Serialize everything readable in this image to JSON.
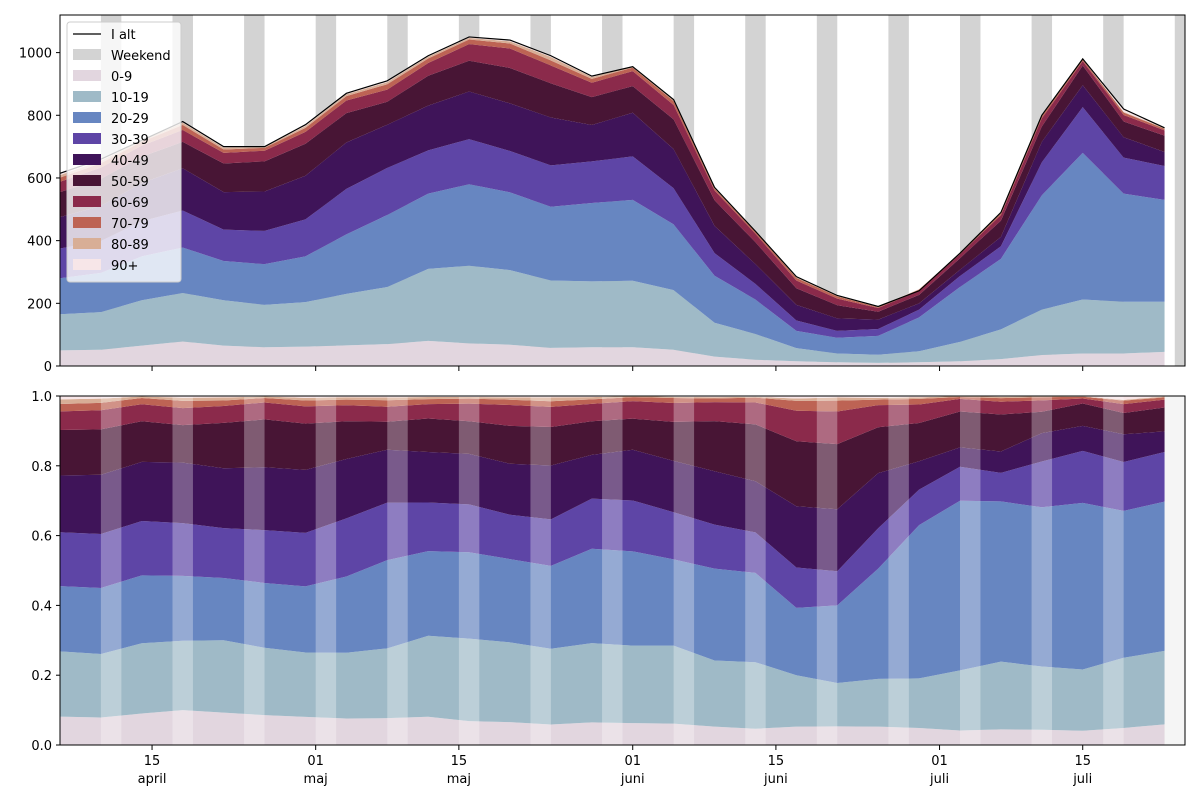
{
  "chart_data": [
    {
      "type": "area",
      "stacked": true,
      "x_axis": {
        "start_date": "2021-04-06",
        "end_date": "2021-07-25",
        "major_ticks": [
          {
            "date": "2021-04-15",
            "day": "15",
            "month": "april"
          },
          {
            "date": "2021-05-01",
            "day": "01",
            "month": "maj"
          },
          {
            "date": "2021-05-15",
            "day": "15",
            "month": "maj"
          },
          {
            "date": "2021-06-01",
            "day": "01",
            "month": "juni"
          },
          {
            "date": "2021-06-15",
            "day": "15",
            "month": "juni"
          },
          {
            "date": "2021-07-01",
            "day": "01",
            "month": "juli"
          },
          {
            "date": "2021-07-15",
            "day": "15",
            "month": "juli"
          }
        ]
      },
      "ylim": [
        0,
        1120
      ],
      "yticks": [
        0,
        200,
        400,
        600,
        800,
        1000
      ],
      "legend_position": "top-left",
      "weekend_color": "#d3d3d3",
      "total_color": "#000000",
      "legend": {
        "total": "I alt",
        "weekend": "Weekend"
      },
      "weekends": [
        {
          "start": "2021-04-10",
          "end": "2021-04-11"
        },
        {
          "start": "2021-04-17",
          "end": "2021-04-18"
        },
        {
          "start": "2021-04-24",
          "end": "2021-04-25"
        },
        {
          "start": "2021-05-01",
          "end": "2021-05-02"
        },
        {
          "start": "2021-05-08",
          "end": "2021-05-09"
        },
        {
          "start": "2021-05-15",
          "end": "2021-05-16"
        },
        {
          "start": "2021-05-22",
          "end": "2021-05-23"
        },
        {
          "start": "2021-05-29",
          "end": "2021-05-30"
        },
        {
          "start": "2021-06-05",
          "end": "2021-06-06"
        },
        {
          "start": "2021-06-12",
          "end": "2021-06-13"
        },
        {
          "start": "2021-06-19",
          "end": "2021-06-20"
        },
        {
          "start": "2021-06-26",
          "end": "2021-06-27"
        },
        {
          "start": "2021-07-03",
          "end": "2021-07-04"
        },
        {
          "start": "2021-07-10",
          "end": "2021-07-11"
        },
        {
          "start": "2021-07-17",
          "end": "2021-07-18"
        },
        {
          "start": "2021-07-24",
          "end": "2021-07-25"
        }
      ],
      "x": [
        "2021-04-06",
        "2021-04-10",
        "2021-04-14",
        "2021-04-18",
        "2021-04-22",
        "2021-04-26",
        "2021-04-30",
        "2021-05-04",
        "2021-05-08",
        "2021-05-12",
        "2021-05-16",
        "2021-05-20",
        "2021-05-24",
        "2021-05-28",
        "2021-06-01",
        "2021-06-05",
        "2021-06-09",
        "2021-06-13",
        "2021-06-17",
        "2021-06-21",
        "2021-06-25",
        "2021-06-29",
        "2021-07-03",
        "2021-07-07",
        "2021-07-11",
        "2021-07-15",
        "2021-07-19",
        "2021-07-23"
      ],
      "total": [
        615,
        660,
        720,
        780,
        700,
        700,
        770,
        870,
        910,
        990,
        1050,
        1040,
        990,
        925,
        955,
        850,
        570,
        430,
        285,
        225,
        190,
        240,
        360,
        490,
        800,
        980,
        820,
        760
      ],
      "series": [
        {
          "name": "0-9",
          "color": "#e2d6df",
          "values": [
            50,
            52,
            65,
            78,
            65,
            60,
            62,
            66,
            70,
            80,
            72,
            68,
            58,
            60,
            60,
            52,
            30,
            20,
            15,
            12,
            10,
            12,
            15,
            22,
            35,
            40,
            40,
            45
          ]
        },
        {
          "name": "10-19",
          "color": "#9fbac7",
          "values": [
            115,
            120,
            145,
            155,
            145,
            135,
            142,
            164,
            182,
            230,
            248,
            238,
            215,
            210,
            212,
            190,
            108,
            82,
            42,
            28,
            26,
            35,
            62,
            95,
            145,
            172,
            165,
            160
          ]
        },
        {
          "name": "20-29",
          "color": "#6786c1",
          "values": [
            115,
            125,
            140,
            145,
            125,
            130,
            146,
            190,
            230,
            240,
            260,
            248,
            235,
            250,
            258,
            210,
            150,
            110,
            55,
            50,
            60,
            108,
            175,
            225,
            365,
            468,
            345,
            325
          ]
        },
        {
          "name": "30-39",
          "color": "#5e45a6",
          "values": [
            95,
            102,
            112,
            118,
            100,
            106,
            118,
            145,
            150,
            138,
            144,
            132,
            132,
            133,
            139,
            115,
            72,
            50,
            33,
            22,
            22,
            25,
            35,
            40,
            105,
            146,
            115,
            108
          ]
        },
        {
          "name": "40-49",
          "color": "#3f1459",
          "values": [
            100,
            112,
            122,
            135,
            120,
            126,
            139,
            148,
            138,
            143,
            152,
            152,
            153,
            116,
            139,
            125,
            87,
            63,
            50,
            40,
            30,
            20,
            20,
            30,
            65,
            70,
            65,
            45
          ]
        },
        {
          "name": "50-59",
          "color": "#481535",
          "values": [
            80,
            86,
            84,
            84,
            91,
            96,
            102,
            94,
            73,
            95,
            98,
            113,
            109,
            89,
            85,
            95,
            82,
            70,
            53,
            42,
            25,
            27,
            37,
            52,
            49,
            63,
            50,
            52
          ]
        },
        {
          "name": "60-69",
          "color": "#8b2a4b",
          "values": [
            33,
            36,
            35,
            38,
            34,
            34,
            38,
            40,
            39,
            41,
            53,
            62,
            57,
            46,
            48,
            46,
            31,
            27,
            25,
            21,
            12,
            13,
            13,
            18,
            26,
            14,
            21,
            17
          ]
        },
        {
          "name": "70-79",
          "color": "#bd6354",
          "values": [
            13,
            14,
            13,
            16,
            11,
            9,
            13,
            14,
            17,
            14,
            15,
            16,
            16,
            12,
            11,
            12,
            6,
            6,
            8,
            7,
            3,
            4,
            2,
            5,
            7,
            5,
            8,
            5
          ]
        },
        {
          "name": "80-89",
          "color": "#d8ae96",
          "values": [
            8,
            8,
            3,
            7,
            6,
            3,
            6,
            6,
            7,
            6,
            5,
            7,
            11,
            6,
            3,
            3,
            2,
            1,
            2,
            2,
            1,
            1,
            1,
            2,
            2,
            1,
            2,
            2
          ]
        },
        {
          "name": "90+",
          "color": "#f7e6e8",
          "values": [
            6,
            5,
            1,
            4,
            3,
            1,
            4,
            3,
            4,
            3,
            3,
            4,
            4,
            3,
            0,
            2,
            2,
            1,
            2,
            1,
            1,
            1,
            0,
            1,
            1,
            1,
            9,
            1
          ]
        }
      ]
    },
    {
      "type": "area",
      "stacked": true,
      "normalized": true,
      "ylim": [
        0,
        1.0
      ],
      "yticks": [
        0.0,
        0.2,
        0.4,
        0.6,
        0.8,
        1.0
      ],
      "ytick_labels": [
        "0.0",
        "0.2",
        "0.4",
        "0.6",
        "0.8",
        "1.0"
      ],
      "weekend_overlay_color": "#ffffff",
      "weekend_overlay_opacity": 0.3,
      "source": "shares of chart_data[0].series per date"
    }
  ]
}
